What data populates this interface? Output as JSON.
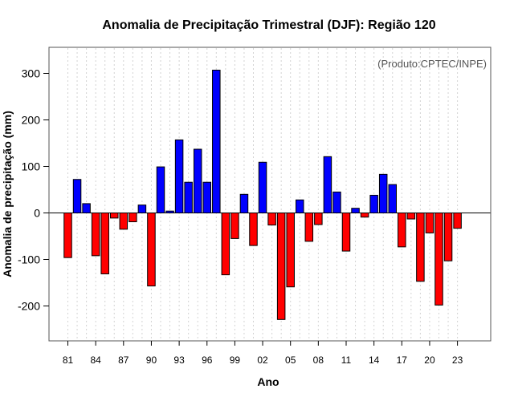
{
  "chart_data": {
    "type": "bar",
    "title": "Anomalia de Precipitação Trimestral (DJF): Região 120",
    "xlabel": "Ano",
    "ylabel": "Anomalia de precipitação (mm)",
    "credit": "(Produto:CPTEC/INPE)",
    "ylim": [
      -280,
      355
    ],
    "yticks": [
      -200,
      -100,
      0,
      100,
      200,
      300
    ],
    "ytick_labels": [
      "-200",
      "-100",
      "0",
      "100",
      "200",
      "300"
    ],
    "xtick_labels": [
      "81",
      "84",
      "87",
      "90",
      "93",
      "96",
      "99",
      "02",
      "05",
      "08",
      "11",
      "14",
      "17",
      "20",
      "23"
    ],
    "grid": true,
    "positive_color": "#0000ff",
    "negative_color": "#ff0000",
    "categories": [
      "1981",
      "1982",
      "1983",
      "1984",
      "1985",
      "1986",
      "1987",
      "1988",
      "1989",
      "1990",
      "1991",
      "1992",
      "1993",
      "1994",
      "1995",
      "1996",
      "1997",
      "1998",
      "1999",
      "2000",
      "2001",
      "2002",
      "2003",
      "2004",
      "2005",
      "2006",
      "2007",
      "2008",
      "2009",
      "2010",
      "2011",
      "2012",
      "2013",
      "2014",
      "2015",
      "2016",
      "2017",
      "2018",
      "2019",
      "2020",
      "2021",
      "2022",
      "2023"
    ],
    "values": [
      -96,
      72,
      20,
      -92,
      -131,
      -11,
      -35,
      -19,
      17,
      -157,
      99,
      4,
      157,
      66,
      137,
      66,
      307,
      -133,
      -55,
      40,
      -70,
      109,
      -26,
      -229,
      -159,
      28,
      -61,
      -25,
      121,
      45,
      -82,
      10,
      -9,
      38,
      83,
      61,
      -73,
      -13,
      -147,
      -43,
      -198,
      -103,
      -33
    ]
  }
}
